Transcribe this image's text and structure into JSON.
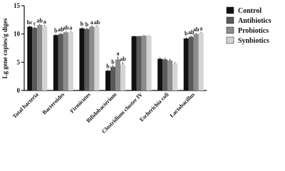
{
  "chart_data": {
    "type": "bar",
    "y_label": "Lg gene copies/g diges",
    "categories": [
      "Total bacteria",
      "Bacteroides",
      "Firmicutes",
      "Bifidobacterium",
      "Clostridium cluster IV",
      "Escherichia coli",
      "Lactobacillus"
    ],
    "series": [
      {
        "name": "Control",
        "color": "#111111",
        "values": [
          11.3,
          9.8,
          11.0,
          3.5,
          9.6,
          5.6,
          9.2
        ],
        "errors": [
          0.2,
          0.2,
          0.2,
          0.2,
          0.1,
          0.3,
          0.3
        ],
        "value_labels": [
          "bc",
          "b",
          "b",
          "b",
          null,
          null,
          "b"
        ]
      },
      {
        "name": "Antibiotics",
        "color": "#5a5a5a",
        "values": [
          11.1,
          10.0,
          10.9,
          4.2,
          9.6,
          5.5,
          9.5
        ],
        "errors": [
          0.2,
          0.2,
          0.2,
          0.3,
          0.1,
          0.3,
          0.2
        ],
        "value_labels": [
          "c",
          "ab",
          "b",
          "b",
          null,
          null,
          "ab"
        ]
      },
      {
        "name": "Probiotics",
        "color": "#8c8c8c",
        "values": [
          11.6,
          10.3,
          11.3,
          5.5,
          9.7,
          5.3,
          10.0
        ],
        "errors": [
          0.2,
          0.2,
          0.2,
          0.5,
          0.1,
          0.3,
          0.2
        ],
        "value_labels": [
          "ab",
          "ab",
          "a",
          "a",
          null,
          null,
          "ab"
        ]
      },
      {
        "name": "Synbiotics",
        "color": "#d4d4d4",
        "values": [
          11.4,
          10.3,
          11.3,
          4.6,
          9.7,
          4.8,
          10.2
        ],
        "errors": [
          0.2,
          0.2,
          0.2,
          0.4,
          0.1,
          0.2,
          0.2
        ],
        "value_labels": [
          "a",
          "a",
          "ab",
          "ab",
          null,
          null,
          "a"
        ]
      }
    ],
    "ylim": [
      0,
      15
    ],
    "yticks": [
      0,
      5,
      10,
      15
    ],
    "legend": "right"
  }
}
